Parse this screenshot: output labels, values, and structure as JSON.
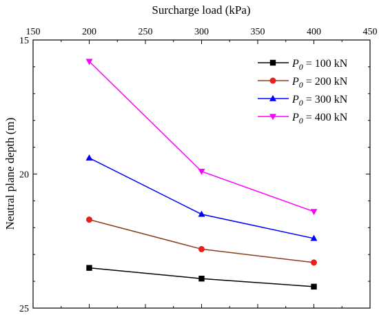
{
  "chart_data": {
    "type": "line",
    "xlabel": "Surcharge load (kPa)",
    "ylabel": "Neutral plane depth (m)",
    "x_axis_position": "top",
    "y_axis_inverted": true,
    "xlim": [
      150,
      450
    ],
    "ylim": [
      15,
      25
    ],
    "x_ticks": [
      150,
      200,
      250,
      300,
      350,
      400,
      450
    ],
    "y_ticks": [
      15,
      20,
      25
    ],
    "grid": false,
    "legend_position": "top-right",
    "x": [
      200,
      300,
      400
    ],
    "series": [
      {
        "label_var": "P",
        "label_sub": "0",
        "label_rest": " = 100 kN",
        "color": "#000000",
        "marker": "square",
        "values": [
          23.5,
          23.9,
          24.2
        ]
      },
      {
        "label_var": "P",
        "label_sub": "0",
        "label_rest": " = 200 kN",
        "color": "#8b3a1a",
        "marker": "circle",
        "values": [
          21.7,
          22.8,
          23.3
        ]
      },
      {
        "label_var": "P",
        "label_sub": "0",
        "label_rest": " = 300 kN",
        "color": "#0000ff",
        "marker": "triangle-up",
        "values": [
          19.4,
          21.5,
          22.4
        ]
      },
      {
        "label_var": "P",
        "label_sub": "0",
        "label_rest": " = 400 kN",
        "color": "#ff00ff",
        "marker": "triangle-down",
        "values": [
          15.8,
          19.9,
          21.4
        ]
      }
    ],
    "marker_colors": {
      "circle": "#e8201a"
    }
  }
}
